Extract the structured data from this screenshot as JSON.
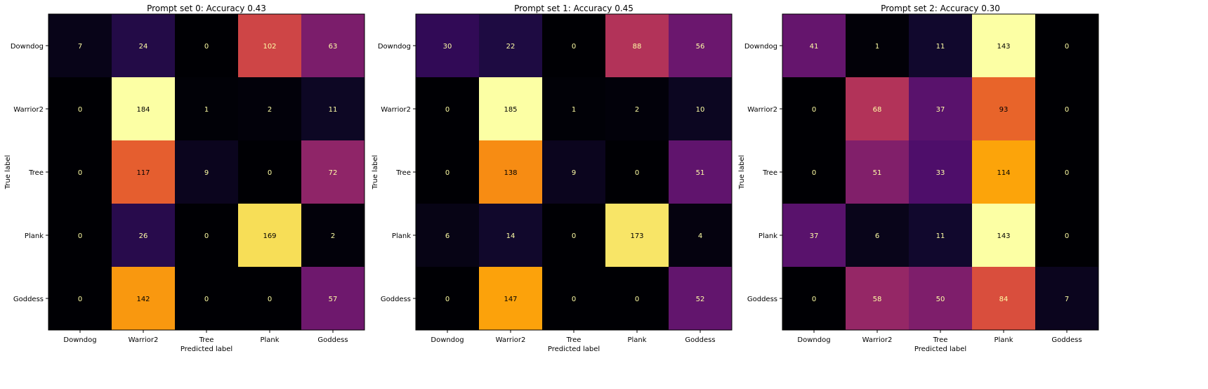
{
  "chart_data": [
    {
      "type": "heatmap",
      "title": "Prompt set 0: Accuracy 0.43",
      "xlabel": "Predicted label",
      "ylabel": "True label",
      "x_categories": [
        "Downdog",
        "Warrior2",
        "Tree",
        "Plank",
        "Goddess"
      ],
      "y_categories": [
        "Downdog",
        "Warrior2",
        "Tree",
        "Plank",
        "Goddess"
      ],
      "colormap": "inferno",
      "values": [
        [
          7,
          24,
          0,
          102,
          63
        ],
        [
          0,
          184,
          1,
          2,
          11
        ],
        [
          0,
          117,
          9,
          0,
          72
        ],
        [
          0,
          26,
          0,
          169,
          2
        ],
        [
          0,
          142,
          0,
          0,
          57
        ]
      ]
    },
    {
      "type": "heatmap",
      "title": "Prompt set 1: Accuracy 0.45",
      "xlabel": "Predicted label",
      "ylabel": "True label",
      "x_categories": [
        "Downdog",
        "Warrior2",
        "Tree",
        "Plank",
        "Goddess"
      ],
      "y_categories": [
        "Downdog",
        "Warrior2",
        "Tree",
        "Plank",
        "Goddess"
      ],
      "colormap": "inferno",
      "values": [
        [
          30,
          22,
          0,
          88,
          56
        ],
        [
          0,
          185,
          1,
          2,
          10
        ],
        [
          0,
          138,
          9,
          0,
          51
        ],
        [
          6,
          14,
          0,
          173,
          4
        ],
        [
          0,
          147,
          0,
          0,
          52
        ]
      ]
    },
    {
      "type": "heatmap",
      "title": "Prompt set 2: Accuracy 0.30",
      "xlabel": "Predicted label",
      "ylabel": "True label",
      "x_categories": [
        "Downdog",
        "Warrior2",
        "Tree",
        "Plank",
        "Goddess"
      ],
      "y_categories": [
        "Downdog",
        "Warrior2",
        "Tree",
        "Plank",
        "Goddess"
      ],
      "colormap": "inferno",
      "values": [
        [
          41,
          1,
          11,
          143,
          0
        ],
        [
          0,
          68,
          37,
          93,
          0
        ],
        [
          0,
          51,
          33,
          114,
          0
        ],
        [
          37,
          6,
          11,
          143,
          0
        ],
        [
          0,
          58,
          50,
          84,
          7
        ]
      ]
    }
  ]
}
